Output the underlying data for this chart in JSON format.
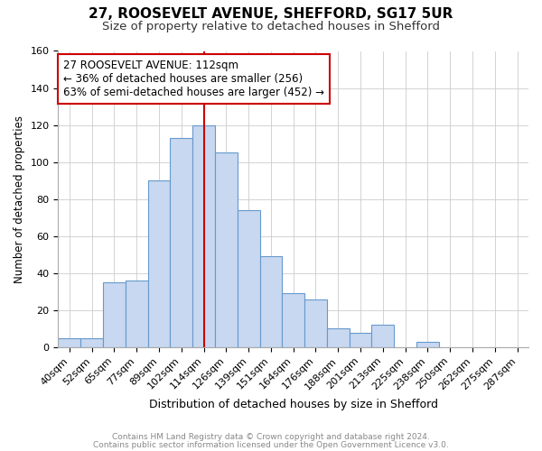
{
  "title1": "27, ROOSEVELT AVENUE, SHEFFORD, SG17 5UR",
  "title2": "Size of property relative to detached houses in Shefford",
  "xlabel": "Distribution of detached houses by size in Shefford",
  "ylabel": "Number of detached properties",
  "categories": [
    "40sqm",
    "52sqm",
    "65sqm",
    "77sqm",
    "89sqm",
    "102sqm",
    "114sqm",
    "126sqm",
    "139sqm",
    "151sqm",
    "164sqm",
    "176sqm",
    "188sqm",
    "201sqm",
    "213sqm",
    "225sqm",
    "238sqm",
    "250sqm",
    "262sqm",
    "275sqm",
    "287sqm"
  ],
  "values": [
    5,
    5,
    35,
    36,
    90,
    113,
    120,
    105,
    74,
    49,
    29,
    26,
    10,
    8,
    12,
    0,
    3,
    0,
    0,
    0,
    0
  ],
  "bar_color": "#c8d8f0",
  "bar_edge_color": "#6699cc",
  "vline_index": 6,
  "annotation_line1": "27 ROOSEVELT AVENUE: 112sqm",
  "annotation_line2": "← 36% of detached houses are smaller (256)",
  "annotation_line3": "63% of semi-detached houses are larger (452) →",
  "annotation_box_color": "#ffffff",
  "annotation_box_edge_color": "#cc0000",
  "vline_color": "#cc0000",
  "ylim": [
    0,
    160
  ],
  "yticks": [
    0,
    20,
    40,
    60,
    80,
    100,
    120,
    140,
    160
  ],
  "footer1": "Contains HM Land Registry data © Crown copyright and database right 2024.",
  "footer2": "Contains public sector information licensed under the Open Government Licence v3.0.",
  "title1_fontsize": 11,
  "title2_fontsize": 9.5,
  "xlabel_fontsize": 9,
  "ylabel_fontsize": 8.5,
  "tick_fontsize": 8,
  "footer_fontsize": 6.5,
  "annotation_fontsize": 8.5
}
